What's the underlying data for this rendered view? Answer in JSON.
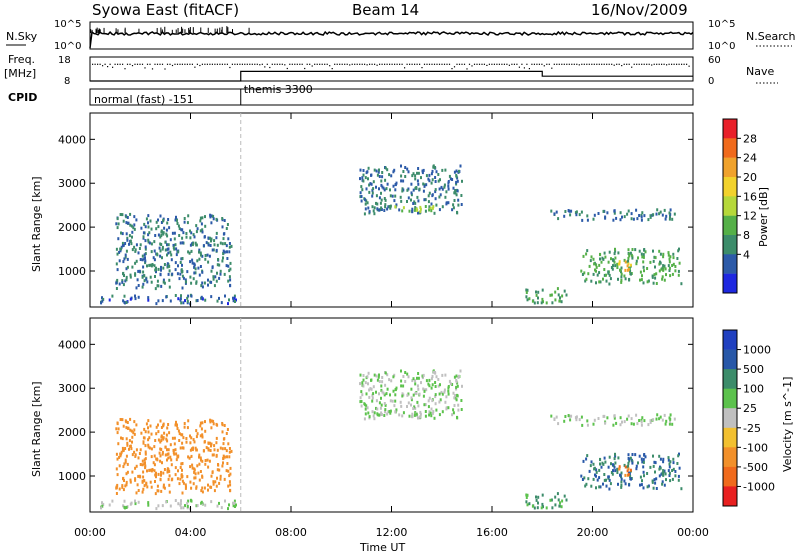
{
  "header": {
    "station": "Syowa East (fitACF)",
    "beam": "Beam 14",
    "date": "16/Nov/2009"
  },
  "side_labels": {
    "nsky": "N.Sky",
    "nsearch": "N.Search",
    "freq_line1": "Freq.",
    "freq_line2": "[MHz]",
    "nave": "Nave",
    "cpid": "CPID"
  },
  "noise_panel": {
    "left_ticks": [
      "10^5",
      "10^0"
    ],
    "right_ticks": [
      "10^5",
      "10^0"
    ]
  },
  "freq_panel": {
    "left_ticks": [
      "18",
      "8"
    ],
    "right_ticks": [
      "60",
      "0"
    ]
  },
  "cpid_panel": {
    "segments": [
      "normal (fast) -151",
      "themis 3300"
    ]
  },
  "power_colorbar": {
    "label": "Power [dB]",
    "ticks": [
      "28",
      "24",
      "20",
      "16",
      "12",
      "8",
      "4"
    ],
    "colors": [
      "#e8202a",
      "#f06a1c",
      "#f0a22c",
      "#f2d22c",
      "#b6d83a",
      "#55b048",
      "#3c8c6a",
      "#2c5aa8",
      "#1e28e0"
    ]
  },
  "velocity_colorbar": {
    "label": "Velocity [m s^-1]",
    "ticks": [
      "1000",
      "500",
      "100",
      "25",
      "-25",
      "-100",
      "-500",
      "-1000"
    ],
    "colors": [
      "#2040c0",
      "#2858a8",
      "#3c8c6a",
      "#5cc24c",
      "#c0c0c0",
      "#f2c030",
      "#f2902a",
      "#f06a1c",
      "#e82020"
    ]
  },
  "chart_data": {
    "type": "heatmap",
    "xlabel": "Time UT",
    "x_ticks": [
      "00:00",
      "04:00",
      "08:00",
      "12:00",
      "16:00",
      "20:00",
      "00:00"
    ],
    "xlim_hours": [
      0,
      24
    ],
    "ylabel": "Slant Range [km]",
    "y_ticks": [
      1000,
      2000,
      3000,
      4000
    ],
    "ylim_km": [
      180,
      4600
    ],
    "nave_value": 60,
    "cpid_change_hour": 6,
    "frequency_mhz": [
      {
        "from_hour": 0,
        "to_hour": 6,
        "value": 8
      },
      {
        "from_hour": 6,
        "to_hour": 18,
        "value": 12
      },
      {
        "from_hour": 18,
        "to_hour": 24,
        "value": 10
      }
    ],
    "echo_regions": [
      {
        "t0": 0.3,
        "t1": 5.8,
        "r0": 250,
        "r1": 450,
        "power_db": 6,
        "velocity": 25
      },
      {
        "t0": 1.0,
        "t1": 5.6,
        "r0": 600,
        "r1": 2300,
        "power_db": 8,
        "velocity": -300
      },
      {
        "t0": 10.7,
        "t1": 14.8,
        "r0": 2300,
        "r1": 3400,
        "power_db": 8,
        "velocity": 25
      },
      {
        "t0": 12.0,
        "t1": 14.0,
        "r0": 2350,
        "r1": 2500,
        "power_db": 16,
        "velocity": 25
      },
      {
        "t0": 18.3,
        "t1": 23.3,
        "r0": 2150,
        "r1": 2400,
        "power_db": 8,
        "velocity": 25
      },
      {
        "t0": 19.5,
        "t1": 23.5,
        "r0": 700,
        "r1": 1500,
        "power_db": 12,
        "velocity": 500
      },
      {
        "t0": 20.8,
        "t1": 21.5,
        "r0": 1000,
        "r1": 1250,
        "power_db": 24,
        "velocity": -500
      },
      {
        "t0": 17.3,
        "t1": 19.0,
        "r0": 250,
        "r1": 600,
        "power_db": 12,
        "velocity": 100
      }
    ]
  }
}
